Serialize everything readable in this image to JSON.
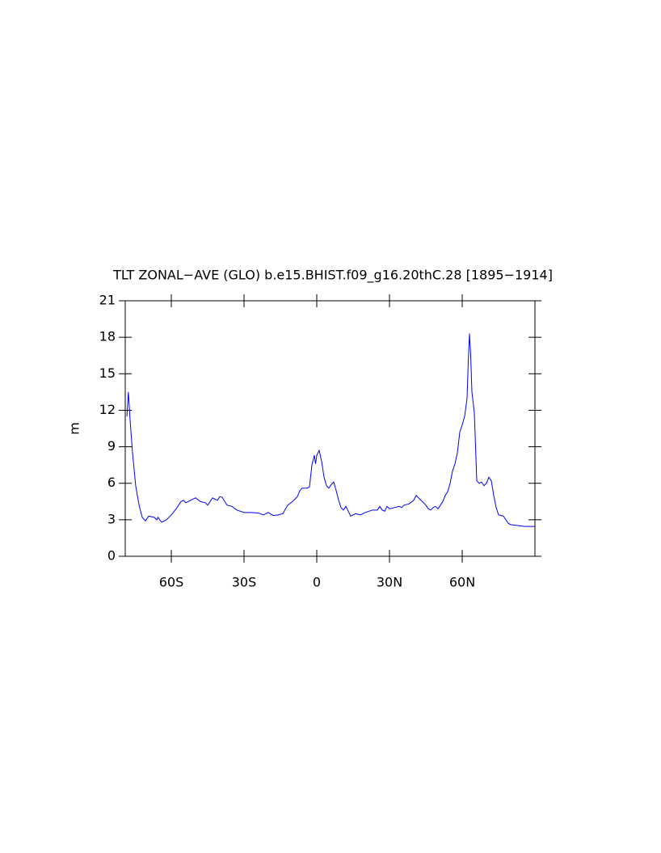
{
  "chart_data": {
    "type": "line",
    "title": "TLT ZONAL−AVE (GLO) b.e15.BHIST.f09_g16.20thC.28 [1895−1914]",
    "ylabel": "m",
    "xlim": [
      -79,
      90
    ],
    "ylim": [
      0,
      21
    ],
    "xticks": [
      {
        "value": -60,
        "label": "60S"
      },
      {
        "value": -30,
        "label": "30S"
      },
      0,
      {
        "value": 30,
        "label": "30N"
      },
      {
        "value": 60,
        "label": "60N"
      }
    ],
    "yticks": [
      0,
      3,
      6,
      9,
      12,
      15,
      18,
      21
    ],
    "x": [
      -78.3,
      -77.7,
      -77,
      -76,
      -74.7,
      -73.3,
      -72,
      -70.7,
      -69.3,
      -67,
      -66,
      -65.5,
      -64,
      -62,
      -60,
      -58,
      -56,
      -55,
      -54,
      -52,
      -50,
      -48,
      -46,
      -45,
      -44,
      -43,
      -42,
      -41,
      -40,
      -39,
      -38,
      -37,
      -35,
      -33,
      -30,
      -27,
      -24,
      -22,
      -20,
      -18,
      -16,
      -14,
      -12,
      -10,
      -8,
      -7,
      -6,
      -4,
      -3,
      -2,
      -1,
      -0.5,
      0,
      1,
      2,
      3,
      4,
      5,
      6,
      7,
      8,
      9,
      10,
      11,
      12,
      13,
      14,
      16,
      18,
      20,
      23,
      25,
      26,
      27,
      28,
      29,
      30,
      32,
      34,
      35,
      36,
      38,
      40,
      41,
      42,
      44,
      45,
      46,
      47,
      48,
      49,
      50,
      51,
      52,
      53,
      54,
      55,
      56,
      57,
      58,
      59,
      60,
      61,
      62,
      62.5,
      63,
      63.5,
      64,
      65,
      65.5,
      66,
      67,
      68,
      69,
      70,
      71,
      72,
      73,
      74,
      75,
      77,
      78,
      79,
      80,
      82,
      84,
      86,
      88,
      90
    ],
    "series": [
      {
        "name": "TLT",
        "color": "#0000ff",
        "values": [
          11.5,
          13.5,
          11.2,
          8.5,
          5.8,
          4.2,
          3.2,
          2.9,
          3.3,
          3.2,
          3.0,
          3.2,
          2.8,
          3.0,
          3.4,
          3.9,
          4.5,
          4.6,
          4.4,
          4.6,
          4.8,
          4.5,
          4.4,
          4.2,
          4.5,
          4.8,
          4.7,
          4.6,
          4.9,
          4.85,
          4.5,
          4.2,
          4.1,
          3.8,
          3.6,
          3.6,
          3.55,
          3.4,
          3.6,
          3.35,
          3.4,
          3.5,
          4.2,
          4.5,
          4.9,
          5.4,
          5.6,
          5.6,
          5.7,
          7.5,
          8.3,
          7.6,
          8.3,
          8.7,
          7.8,
          6.5,
          5.8,
          5.6,
          5.9,
          6.1,
          5.4,
          4.6,
          4.0,
          3.8,
          4.1,
          3.7,
          3.3,
          3.5,
          3.4,
          3.6,
          3.8,
          3.8,
          4.1,
          3.8,
          3.7,
          4.1,
          3.9,
          4.0,
          4.1,
          4.0,
          4.2,
          4.3,
          4.6,
          5.0,
          4.8,
          4.4,
          4.2,
          3.9,
          3.8,
          4.0,
          4.1,
          3.9,
          4.2,
          4.5,
          5.0,
          5.3,
          6.0,
          7.0,
          7.6,
          8.5,
          10.2,
          10.8,
          11.5,
          13.0,
          16.0,
          18.3,
          16.5,
          13.5,
          11.8,
          9.0,
          6.2,
          6.0,
          6.1,
          5.8,
          6.0,
          6.5,
          6.2,
          5.0,
          4.0,
          3.4,
          3.3,
          3.0,
          2.7,
          2.6,
          2.55,
          2.5,
          2.45,
          2.45,
          2.45
        ]
      }
    ]
  }
}
